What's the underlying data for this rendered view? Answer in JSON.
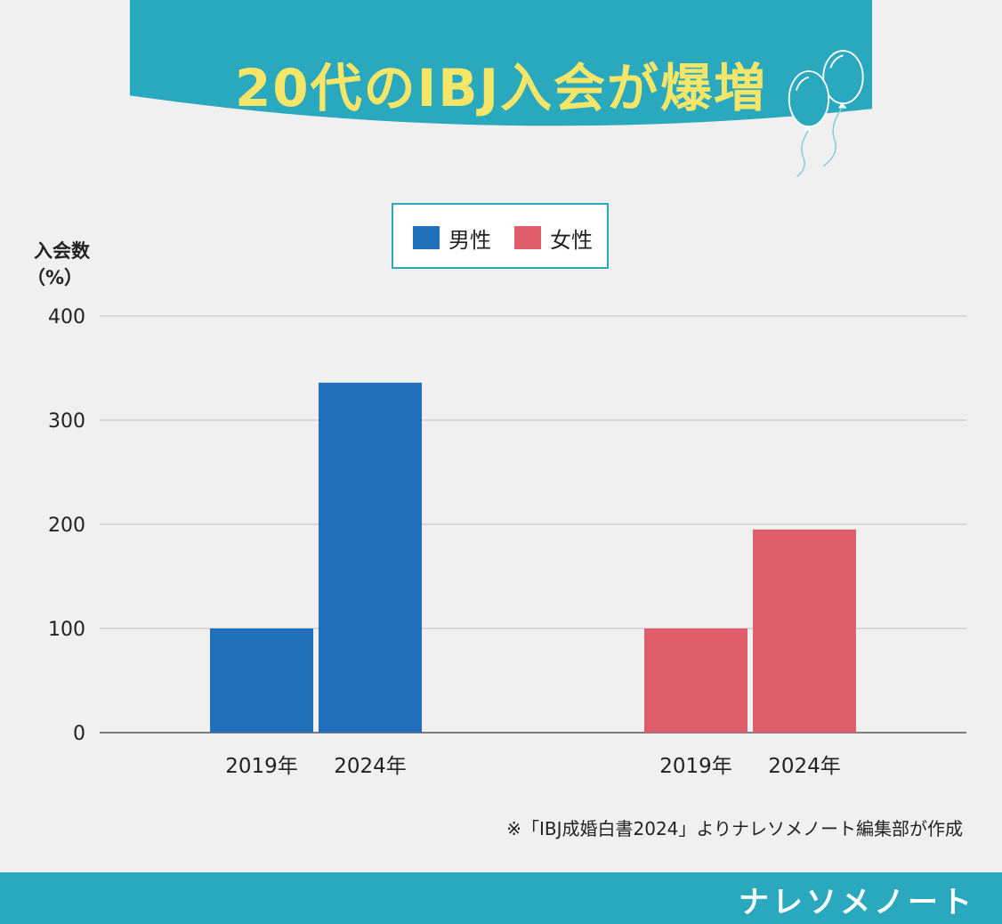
{
  "title": "20代のIBJ入会が爆増",
  "legend": [
    {
      "label": "男性",
      "color": "#2270b9"
    },
    {
      "label": "女性",
      "color": "#de5f6b"
    }
  ],
  "y_label_line1": "入会数",
  "y_label_line2": "（%）",
  "note": "※「IBJ成婚白書2024」よりナレソメノート編集部が作成",
  "brand": "ナレソメノート",
  "colors": {
    "header": "#2aa8bd",
    "background": "#f0f0f0",
    "title": "#f5e66a"
  },
  "chart_data": {
    "type": "bar",
    "categories": [
      "2019年",
      "2024年"
    ],
    "series": [
      {
        "name": "男性",
        "values": [
          100,
          336
        ],
        "color": "#2270b9"
      },
      {
        "name": "女性",
        "values": [
          100,
          195
        ],
        "color": "#de5f6b"
      }
    ],
    "yticks": [
      0,
      100,
      200,
      300,
      400
    ],
    "ylim": [
      0,
      400
    ],
    "ylabel": "入会数（%）",
    "grid": true,
    "legend_position": "top-center"
  }
}
